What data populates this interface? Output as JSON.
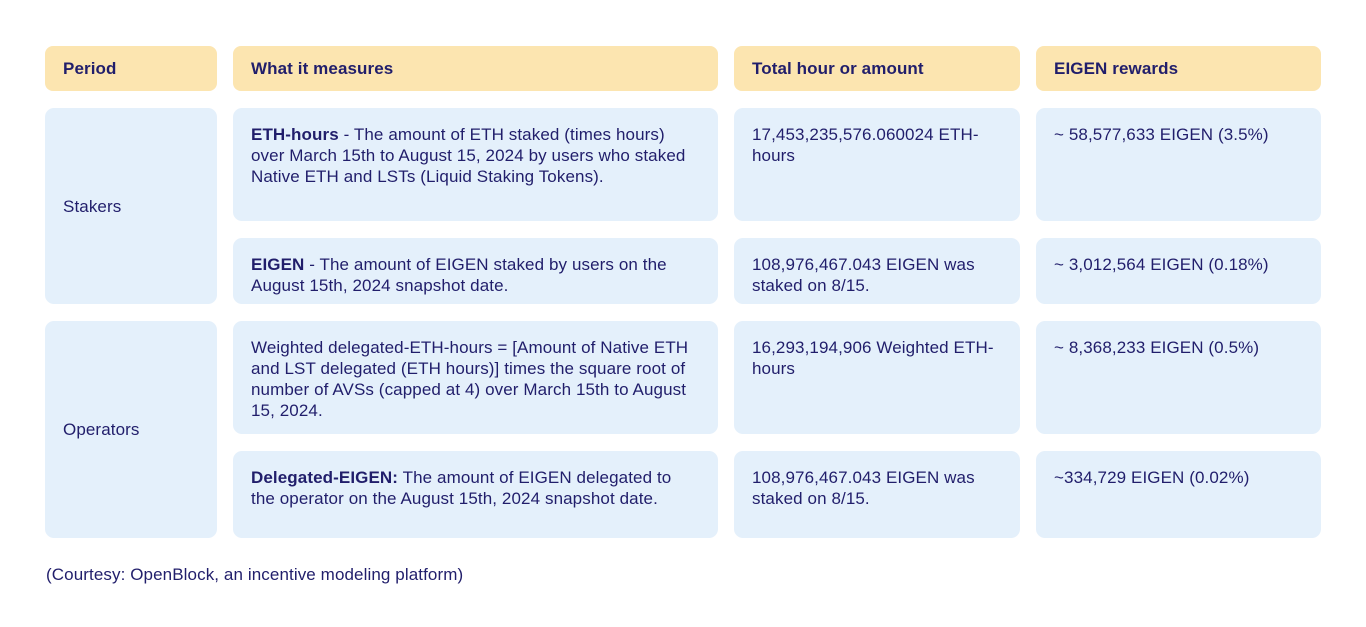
{
  "colors": {
    "header_bg": "#fce5b0",
    "cell_bg": "#e4f0fb",
    "text": "#211e6b",
    "page_bg": "#ffffff"
  },
  "table": {
    "headers": [
      "Period",
      "What it measures",
      "Total hour or amount",
      "EIGEN rewards"
    ],
    "groups": [
      {
        "period": "Stakers",
        "rows": [
          {
            "measure_lead": "ETH-hours",
            "measure_rest": " -  The amount of ETH staked (times hours) over March 15th to August 15, 2024  by users who staked Native ETH and LSTs (Liquid Staking Tokens).",
            "total": "17,453,235,576.060024 ETH-hours",
            "rewards": "~ 58,577,633 EIGEN (3.5%)"
          },
          {
            "measure_lead": "EIGEN",
            "measure_rest": " - The amount of EIGEN staked by users on the August 15th, 2024 snapshot date.",
            "total": "108,976,467.043 EIGEN was staked on 8/15.",
            "rewards": "~ 3,012,564 EIGEN  (0.18%)"
          }
        ]
      },
      {
        "period": "Operators",
        "rows": [
          {
            "measure_lead": "",
            "measure_rest": "Weighted delegated-ETH-hours = [Amount of Native ETH and LST delegated (ETH hours)] times the square root of number of  AVSs (capped at 4) over March 15th to August 15, 2024.",
            "total": "16,293,194,906 Weighted ETH-hours",
            "rewards": "~ 8,368,233 EIGEN (0.5%)"
          },
          {
            "measure_lead": "Delegated-EIGEN:",
            "measure_rest": " The amount of EIGEN delegated to the operator on the August 15th, 2024 snapshot date.",
            "total": "108,976,467.043 EIGEN was staked on 8/15.",
            "rewards": "~334,729 EIGEN (0.02%)"
          }
        ]
      }
    ]
  },
  "footer": {
    "caption": "(Courtesy: OpenBlock, an incentive modeling platform)"
  }
}
